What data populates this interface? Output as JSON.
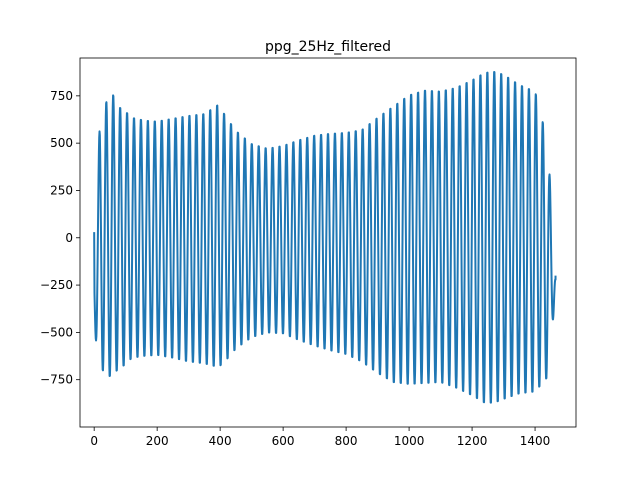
{
  "chart_data": {
    "type": "line",
    "title": "ppg_25Hz_filtered",
    "xlabel": "",
    "ylabel": "",
    "xlim": [
      -45,
      1530
    ],
    "ylim": [
      -1000,
      950
    ],
    "grid": false,
    "line_color": "#1f77b4",
    "x_ticks": [
      0,
      200,
      400,
      600,
      800,
      1000,
      1200,
      1400
    ],
    "y_ticks": [
      -750,
      -500,
      -250,
      0,
      250,
      500,
      750
    ],
    "tick_labels_x": [
      "0",
      "200",
      "400",
      "600",
      "800",
      "1000",
      "1200",
      "1400"
    ],
    "tick_labels_y": [
      "−750",
      "−500",
      "−250",
      "0",
      "250",
      "500",
      "750"
    ],
    "series": [
      {
        "cycle_period": 22,
        "x_start": 0,
        "x_end": 1465,
        "start_value": 30,
        "end_value": -200,
        "envelope_x": [
          0,
          18,
          40,
          60,
          75,
          95,
          120,
          160,
          200,
          250,
          300,
          350,
          395,
          420,
          450,
          500,
          550,
          600,
          650,
          700,
          750,
          800,
          850,
          900,
          950,
          1000,
          1050,
          1100,
          1150,
          1200,
          1240,
          1270,
          1300,
          1350,
          1400,
          1440,
          1465
        ],
        "envelope_max": [
          30,
          600,
          730,
          760,
          700,
          680,
          640,
          625,
          620,
          635,
          650,
          660,
          710,
          640,
          570,
          500,
          475,
          490,
          520,
          545,
          555,
          560,
          575,
          640,
          700,
          760,
          785,
          780,
          800,
          840,
          880,
          885,
          870,
          815,
          780,
          510,
          -200
        ],
        "envelope_min": [
          -480,
          -680,
          -740,
          -735,
          -700,
          -680,
          -640,
          -630,
          -625,
          -640,
          -660,
          -670,
          -690,
          -650,
          -590,
          -530,
          -505,
          -510,
          -545,
          -575,
          -600,
          -620,
          -660,
          -720,
          -770,
          -780,
          -775,
          -770,
          -800,
          -840,
          -880,
          -880,
          -860,
          -830,
          -820,
          -740,
          -290
        ]
      }
    ]
  }
}
